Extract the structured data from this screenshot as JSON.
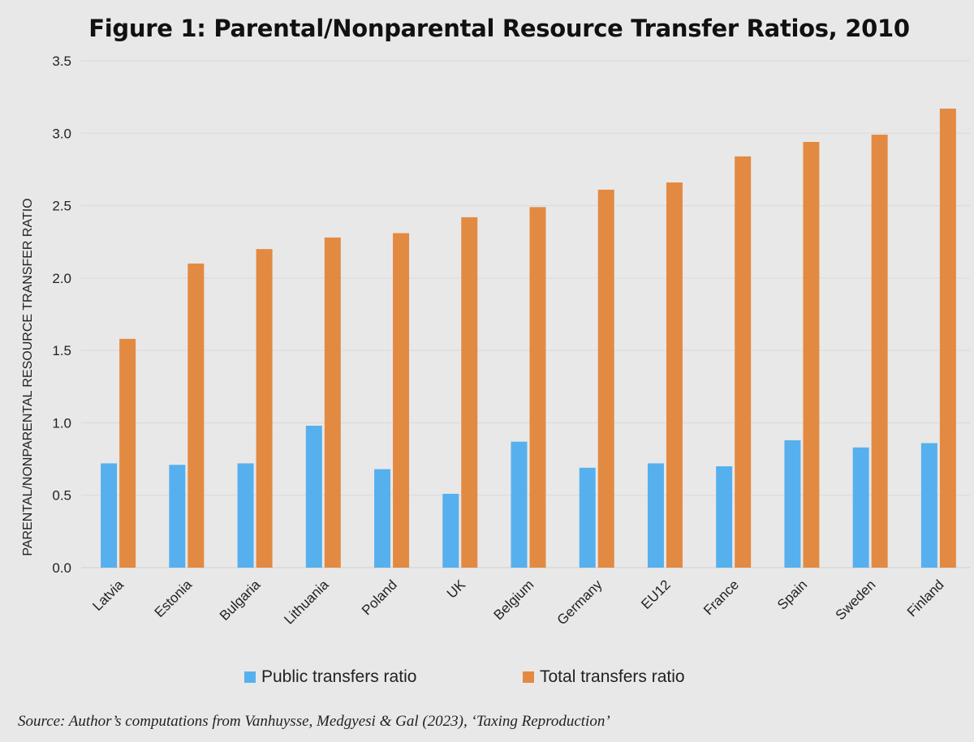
{
  "chart_data": {
    "type": "bar",
    "title": "Figure 1: Parental/Nonparental Resource Transfer Ratios, 2010",
    "ylabel": "PARENTAL/NONPARENTAL RESOURCE TRANSFER RATIO",
    "xlabel": "",
    "ylim": [
      0,
      3.5
    ],
    "yticks": [
      "0.0",
      "0.5",
      "1.0",
      "1.5",
      "2.0",
      "2.5",
      "3.0",
      "3.5"
    ],
    "grid": true,
    "legend_position": "bottom",
    "categories": [
      "Latvia",
      "Estonia",
      "Bulgaria",
      "Lithuania",
      "Poland",
      "UK",
      "Belgium",
      "Germany",
      "EU12",
      "France",
      "Spain",
      "Sweden",
      "Finland"
    ],
    "series": [
      {
        "name": "Public transfers ratio",
        "color": "#56b0ee",
        "values": [
          0.72,
          0.71,
          0.72,
          0.98,
          0.68,
          0.51,
          0.87,
          0.69,
          0.72,
          0.7,
          0.88,
          0.83,
          0.86
        ]
      },
      {
        "name": "Total transfers ratio",
        "color": "#e38a42",
        "values": [
          1.58,
          2.1,
          2.2,
          2.28,
          2.31,
          2.42,
          2.49,
          2.61,
          2.66,
          2.84,
          2.94,
          2.99,
          3.17
        ]
      }
    ]
  },
  "source_note": "Source: Author’s computations from Vanhuysse, Medgyesi & Gal (2023), ‘Taxing Reproduction’"
}
